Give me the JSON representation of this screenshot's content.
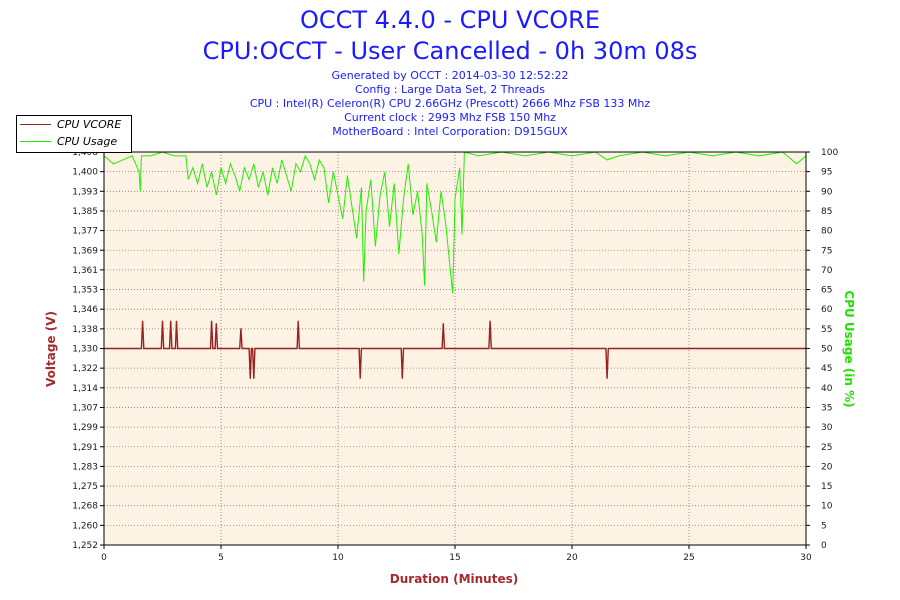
{
  "header": {
    "title": "OCCT 4.4.0 - CPU VCORE",
    "subtitle": "CPU:OCCT - User Cancelled - 0h 30m 08s",
    "info": [
      "Generated by OCCT : 2014-03-30 12:52:22",
      "Config : Large Data Set, 2 Threads",
      "CPU : Intel(R) Celeron(R) CPU 2.66GHz (Prescott) 2666 Mhz FSB 133 Mhz",
      "Current clock : 2993 Mhz FSB 150 Mhz",
      "MotherBoard : Intel Corporation: D915GUX"
    ]
  },
  "legend": {
    "items": [
      {
        "label": "CPU VCORE",
        "color": "#9b2020"
      },
      {
        "label": "CPU Usage",
        "color": "#22ee00"
      }
    ]
  },
  "colors": {
    "plot_background": "#fcf3e4",
    "grid": "#a07070",
    "title": "#1a1aff",
    "vcore": "#9b2020",
    "usage": "#22ee00",
    "left_axis_title": "#a52a2a",
    "right_axis_title": "#22e000"
  },
  "chart_data": {
    "type": "line",
    "xlabel": "Duration (Minutes)",
    "ylabel_left": "Voltage (V)",
    "ylabel_right": "CPU Usage (in %)",
    "xlim": [
      0,
      30
    ],
    "ylim_left": [
      1.252,
      1.408
    ],
    "ylim_right": [
      0,
      100
    ],
    "x_ticks": [
      "0",
      "5",
      "10",
      "15",
      "20",
      "25",
      "30"
    ],
    "y_left_ticks": [
      "1,252",
      "1,260",
      "1,268",
      "1,275",
      "1,283",
      "1,291",
      "1,299",
      "1,307",
      "1,314",
      "1,322",
      "1,330",
      "1,338",
      "1,346",
      "1,353",
      "1,361",
      "1,369",
      "1,377",
      "1,385",
      "1,393",
      "1,400",
      "1,408"
    ],
    "y_right_ticks": [
      "0",
      "5",
      "10",
      "15",
      "20",
      "25",
      "30",
      "35",
      "40",
      "45",
      "50",
      "55",
      "60",
      "65",
      "70",
      "75",
      "80",
      "85",
      "90",
      "95",
      "100"
    ],
    "grid": true,
    "legend_position": "top-left",
    "series": [
      {
        "name": "CPU VCORE",
        "axis": "left",
        "baseline": 1.33,
        "values": [
          [
            0,
            1.33
          ],
          [
            1.6,
            1.33
          ],
          [
            1.65,
            1.341
          ],
          [
            1.7,
            1.33
          ],
          [
            2.45,
            1.33
          ],
          [
            2.5,
            1.341
          ],
          [
            2.55,
            1.33
          ],
          [
            2.8,
            1.33
          ],
          [
            2.85,
            1.341
          ],
          [
            2.9,
            1.33
          ],
          [
            3.05,
            1.33
          ],
          [
            3.1,
            1.341
          ],
          [
            3.15,
            1.33
          ],
          [
            4.55,
            1.33
          ],
          [
            4.6,
            1.341
          ],
          [
            4.65,
            1.33
          ],
          [
            4.75,
            1.33
          ],
          [
            4.8,
            1.34
          ],
          [
            4.85,
            1.33
          ],
          [
            5.8,
            1.33
          ],
          [
            5.85,
            1.338
          ],
          [
            5.9,
            1.33
          ],
          [
            6.2,
            1.33
          ],
          [
            6.25,
            1.318
          ],
          [
            6.3,
            1.33
          ],
          [
            6.35,
            1.33
          ],
          [
            6.4,
            1.318
          ],
          [
            6.45,
            1.33
          ],
          [
            8.25,
            1.33
          ],
          [
            8.3,
            1.341
          ],
          [
            8.35,
            1.33
          ],
          [
            10.9,
            1.33
          ],
          [
            10.95,
            1.318
          ],
          [
            11.0,
            1.33
          ],
          [
            12.7,
            1.33
          ],
          [
            12.75,
            1.318
          ],
          [
            12.8,
            1.33
          ],
          [
            14.45,
            1.33
          ],
          [
            14.5,
            1.34
          ],
          [
            14.55,
            1.33
          ],
          [
            16.45,
            1.33
          ],
          [
            16.5,
            1.341
          ],
          [
            16.55,
            1.33
          ],
          [
            21.45,
            1.33
          ],
          [
            21.5,
            1.318
          ],
          [
            21.55,
            1.33
          ],
          [
            30,
            1.33
          ]
        ]
      },
      {
        "name": "CPU Usage",
        "axis": "right",
        "values": [
          [
            0,
            99
          ],
          [
            0.4,
            97
          ],
          [
            0.8,
            98
          ],
          [
            1.2,
            99
          ],
          [
            1.5,
            95
          ],
          [
            1.55,
            90
          ],
          [
            1.6,
            99
          ],
          [
            2.0,
            99
          ],
          [
            2.5,
            100
          ],
          [
            3.0,
            99
          ],
          [
            3.5,
            99
          ],
          [
            3.6,
            93
          ],
          [
            3.8,
            96
          ],
          [
            4.0,
            92
          ],
          [
            4.2,
            97
          ],
          [
            4.4,
            91
          ],
          [
            4.6,
            95
          ],
          [
            4.8,
            89
          ],
          [
            5.0,
            96
          ],
          [
            5.2,
            92
          ],
          [
            5.4,
            97
          ],
          [
            5.6,
            94
          ],
          [
            5.8,
            90
          ],
          [
            6.0,
            96
          ],
          [
            6.2,
            93
          ],
          [
            6.4,
            97
          ],
          [
            6.6,
            91
          ],
          [
            6.8,
            95
          ],
          [
            7.0,
            89
          ],
          [
            7.2,
            96
          ],
          [
            7.4,
            92
          ],
          [
            7.6,
            98
          ],
          [
            7.8,
            94
          ],
          [
            8.0,
            90
          ],
          [
            8.2,
            97
          ],
          [
            8.4,
            95
          ],
          [
            8.6,
            99
          ],
          [
            8.8,
            97
          ],
          [
            9.0,
            93
          ],
          [
            9.2,
            98
          ],
          [
            9.4,
            96
          ],
          [
            9.6,
            87
          ],
          [
            9.8,
            95
          ],
          [
            10.0,
            89
          ],
          [
            10.2,
            83
          ],
          [
            10.4,
            94
          ],
          [
            10.6,
            86
          ],
          [
            10.8,
            78
          ],
          [
            11.0,
            91
          ],
          [
            11.1,
            67
          ],
          [
            11.2,
            85
          ],
          [
            11.4,
            93
          ],
          [
            11.6,
            76
          ],
          [
            11.8,
            89
          ],
          [
            12.0,
            95
          ],
          [
            12.2,
            81
          ],
          [
            12.4,
            92
          ],
          [
            12.6,
            74
          ],
          [
            12.8,
            88
          ],
          [
            13.0,
            97
          ],
          [
            13.2,
            84
          ],
          [
            13.4,
            90
          ],
          [
            13.6,
            79
          ],
          [
            13.7,
            66
          ],
          [
            13.8,
            92
          ],
          [
            14.0,
            85
          ],
          [
            14.2,
            77
          ],
          [
            14.4,
            90
          ],
          [
            14.6,
            82
          ],
          [
            14.8,
            70
          ],
          [
            14.9,
            64
          ],
          [
            15.0,
            88
          ],
          [
            15.2,
            96
          ],
          [
            15.3,
            79
          ],
          [
            15.4,
            100
          ],
          [
            16.0,
            99
          ],
          [
            17.0,
            100
          ],
          [
            18.0,
            99
          ],
          [
            19.0,
            100
          ],
          [
            20.0,
            99
          ],
          [
            21.0,
            100
          ],
          [
            21.5,
            98
          ],
          [
            22.0,
            99
          ],
          [
            23.0,
            100
          ],
          [
            24.0,
            99
          ],
          [
            25.0,
            100
          ],
          [
            26.0,
            99
          ],
          [
            27.0,
            100
          ],
          [
            28.0,
            99
          ],
          [
            29.0,
            100
          ],
          [
            29.6,
            97
          ],
          [
            30.0,
            99
          ]
        ]
      }
    ]
  }
}
